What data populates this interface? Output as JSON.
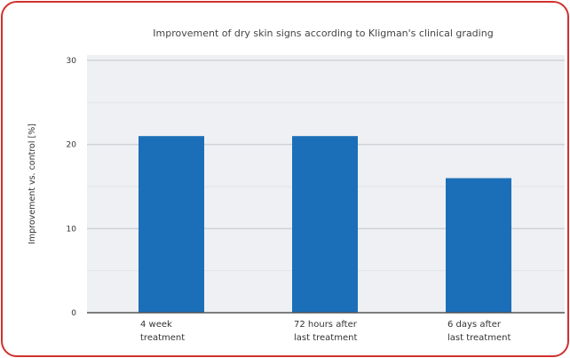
{
  "chart_data": {
    "type": "bar",
    "title": "Improvement of dry skin signs according to Kligman's clinical grading",
    "ylabel": "Improvement vs. control [%]",
    "xlabel": "",
    "categories": [
      [
        "4 week",
        "treatment"
      ],
      [
        "72 hours after",
        "last treatment"
      ],
      [
        "6 days after",
        "last treatment"
      ]
    ],
    "values": [
      21,
      21,
      16
    ],
    "ylim": [
      0,
      30
    ],
    "yticks": [
      0,
      10,
      20,
      30
    ],
    "grid": true,
    "legend": "none",
    "colors": {
      "bar": "#1b6fb8",
      "plot_background": "#eef0f3",
      "frame": "#d0312d"
    }
  }
}
